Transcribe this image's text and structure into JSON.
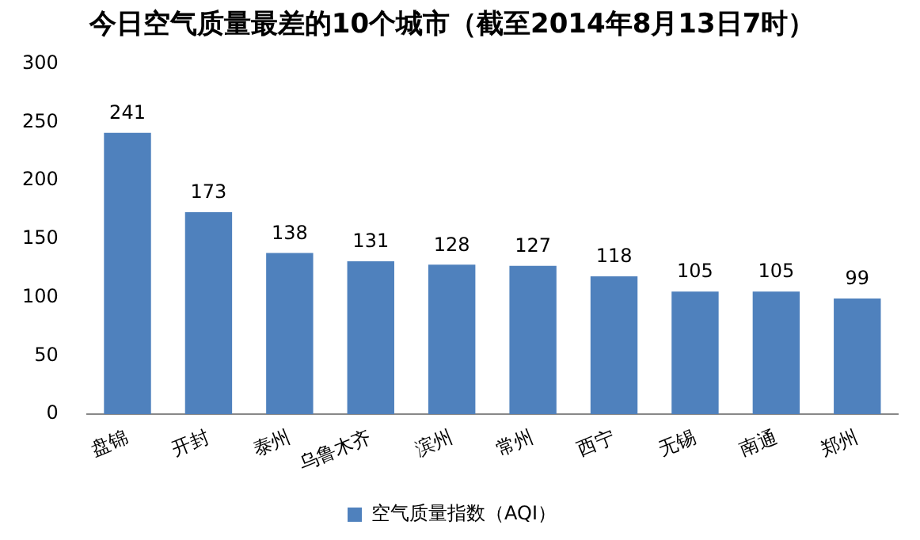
{
  "chart_data": {
    "type": "bar",
    "title": "今日空气质量最差的10个城市（截至2014年8月13日7时）",
    "categories": [
      "盘锦",
      "开封",
      "泰州",
      "乌鲁木齐",
      "滨州",
      "常州",
      "西宁",
      "无锡",
      "南通",
      "郑州"
    ],
    "series": [
      {
        "name": "空气质量指数（AQI）",
        "color": "#4f81bd",
        "values": [
          241,
          173,
          138,
          131,
          128,
          127,
          118,
          105,
          105,
          99
        ]
      }
    ],
    "ylim": [
      0,
      300
    ],
    "yticks": [
      0,
      50,
      100,
      150,
      200,
      250,
      300
    ],
    "grid": false,
    "legend": "bottom",
    "data_labels": true
  }
}
